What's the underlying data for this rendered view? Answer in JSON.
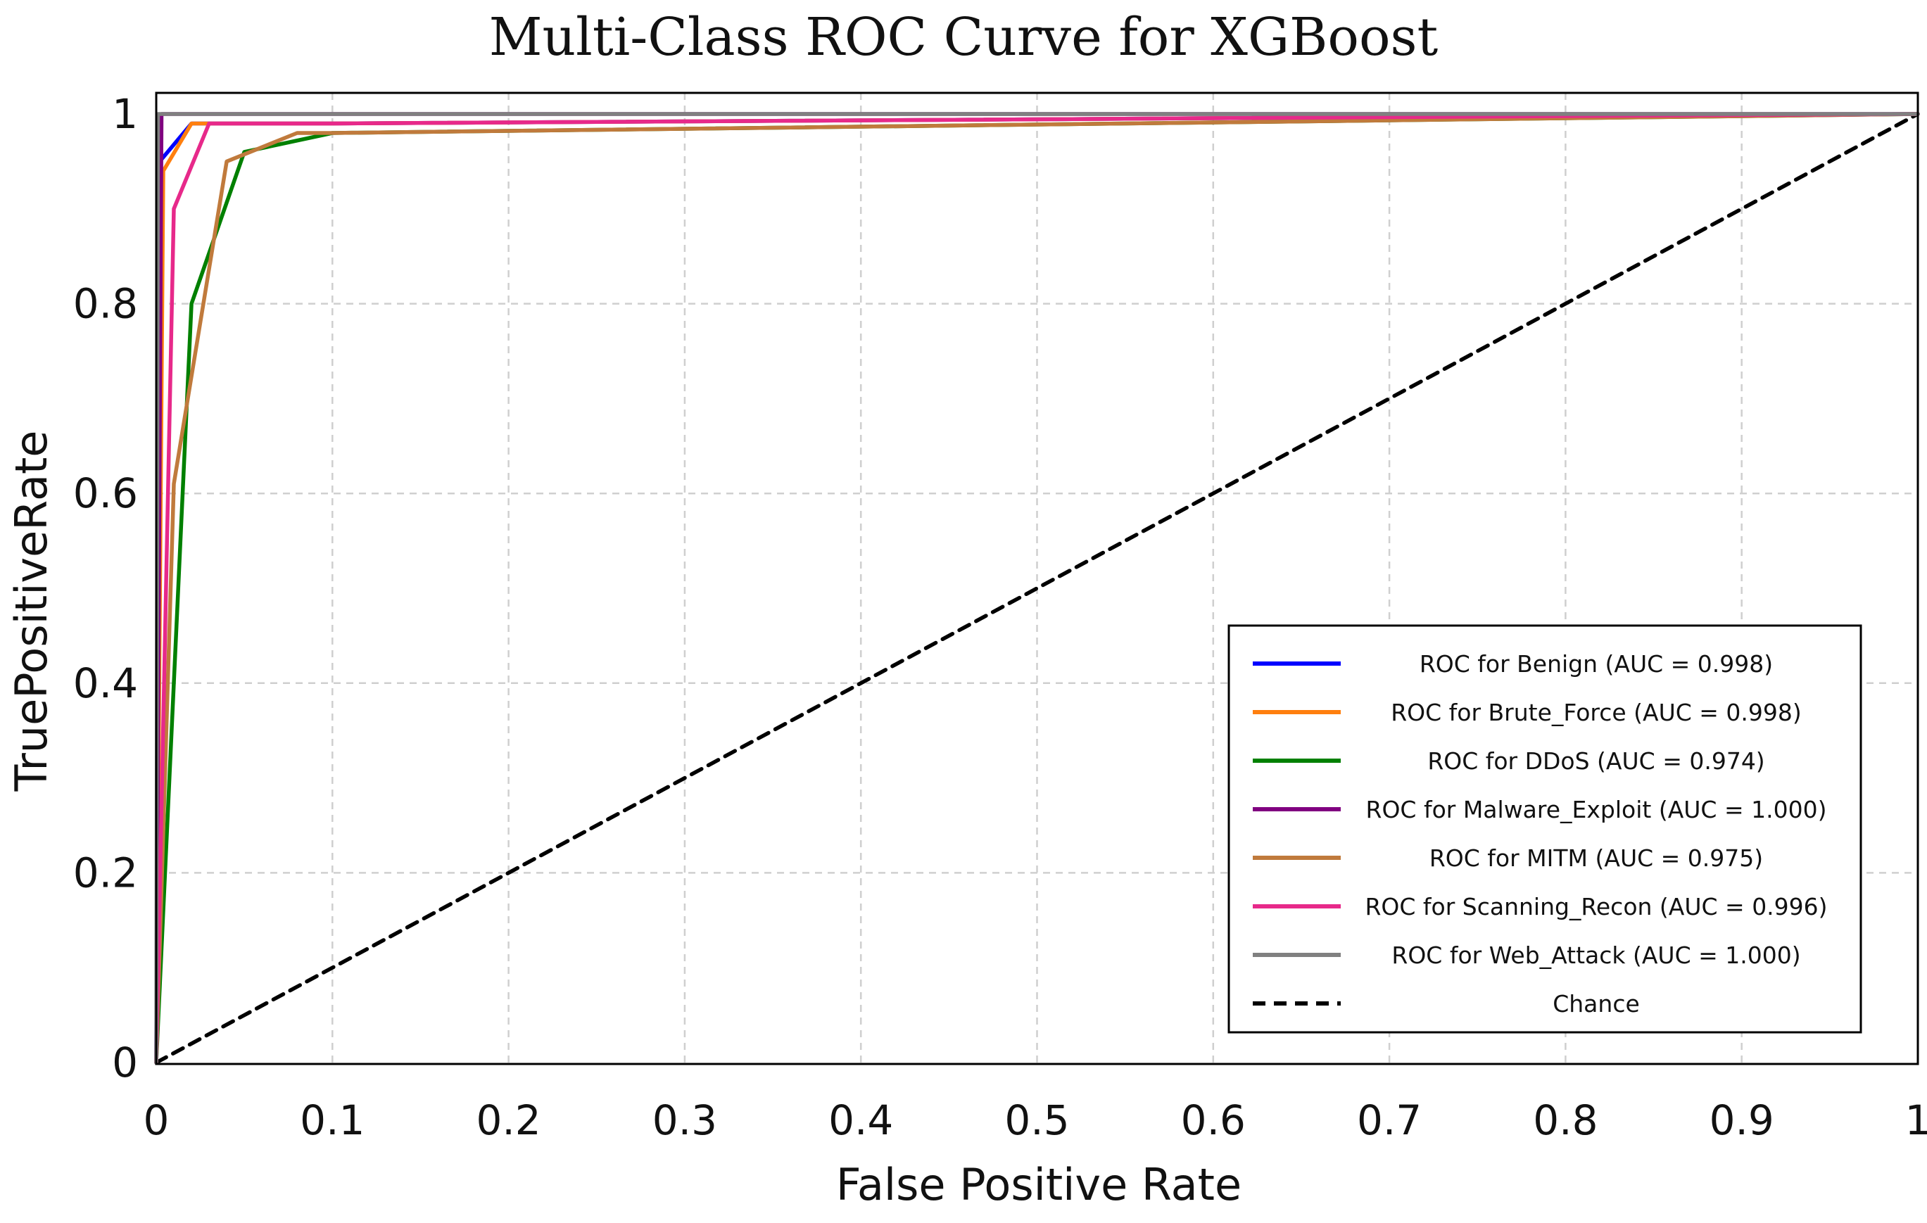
{
  "chart_data": {
    "type": "line",
    "title": "Multi-Class ROC Curve for XGBoost",
    "xlabel": "False Positive Rate",
    "ylabel": "TruePositiveRate",
    "xlim": [
      0,
      1
    ],
    "ylim": [
      0,
      1
    ],
    "grid": true,
    "legend_position": "lower-right",
    "x_ticks": [
      "0",
      "0.1",
      "0.2",
      "0.3",
      "0.4",
      "0.5",
      "0.6",
      "0.7",
      "0.8",
      "0.9",
      "1"
    ],
    "y_ticks": [
      "0",
      "0.2",
      "0.4",
      "0.6",
      "0.8",
      "1"
    ],
    "series": [
      {
        "name": "ROC for Benign (AUC = 0.998)",
        "color": "#0000ff",
        "dash": false,
        "x": [
          0,
          0.002,
          0.02,
          0.1,
          1
        ],
        "y": [
          0,
          0.95,
          0.99,
          0.99,
          1
        ]
      },
      {
        "name": "ROC for Brute_Force (AUC = 0.998)",
        "color": "#ff7f0e",
        "dash": false,
        "x": [
          0,
          0.004,
          0.02,
          0.1,
          1
        ],
        "y": [
          0,
          0.94,
          0.99,
          0.99,
          1
        ]
      },
      {
        "name": "ROC for DDoS (AUC = 0.974)",
        "color": "#008000",
        "dash": false,
        "x": [
          0,
          0.015,
          0.02,
          0.05,
          0.1,
          1
        ],
        "y": [
          0,
          0.6,
          0.8,
          0.96,
          0.98,
          1
        ]
      },
      {
        "name": "ROC for Malware_Exploit (AUC = 1.000)",
        "color": "#800080",
        "dash": false,
        "x": [
          0,
          0.003,
          1
        ],
        "y": [
          0,
          1,
          1
        ]
      },
      {
        "name": "ROC for MITM (AUC = 0.975)",
        "color": "#c07a3c",
        "dash": false,
        "x": [
          0,
          0.01,
          0.04,
          0.08,
          0.1,
          1
        ],
        "y": [
          0,
          0.61,
          0.95,
          0.98,
          0.98,
          1
        ]
      },
      {
        "name": "ROC for Scanning_Recon (AUC = 0.996)",
        "color": "#e7298a",
        "dash": false,
        "x": [
          0,
          0.01,
          0.03,
          0.1,
          1
        ],
        "y": [
          0,
          0.9,
          0.99,
          0.99,
          1
        ]
      },
      {
        "name": "ROC for Web_Attack (AUC = 1.000)",
        "color": "#808080",
        "dash": false,
        "x": [
          0,
          0.001,
          1
        ],
        "y": [
          0,
          1,
          1
        ]
      },
      {
        "name": "Chance",
        "color": "#000000",
        "dash": true,
        "x": [
          0,
          1
        ],
        "y": [
          0,
          1
        ]
      }
    ]
  }
}
